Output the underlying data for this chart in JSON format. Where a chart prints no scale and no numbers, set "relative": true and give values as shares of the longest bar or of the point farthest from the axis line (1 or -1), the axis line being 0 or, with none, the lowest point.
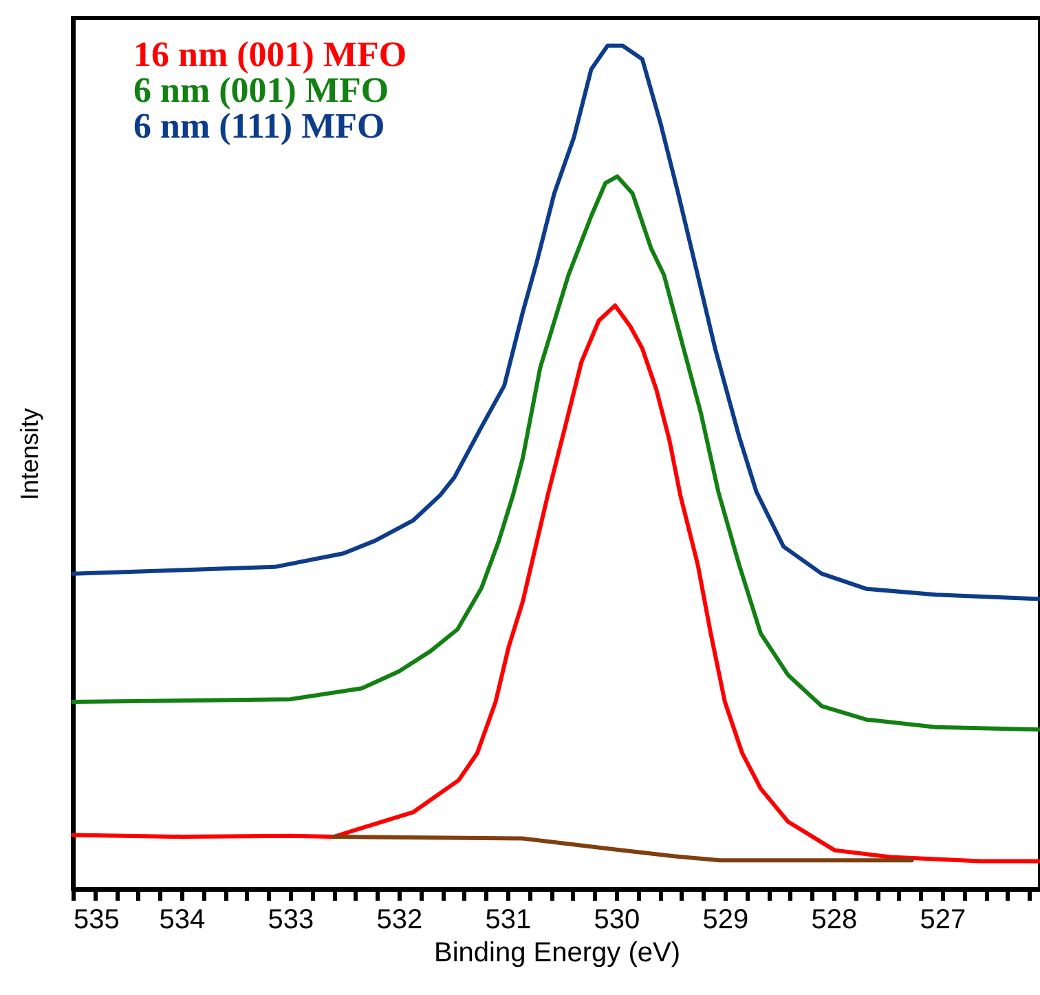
{
  "chart_data": {
    "type": "line",
    "relative": true,
    "xlabel": "Binding Energy (eV)",
    "ylabel": "Intensity",
    "xlim": [
      535,
      526.1
    ],
    "xticks": [
      535,
      {
        "value": 534.8,
        "label": null
      },
      {
        "value": 534.6,
        "label": null
      },
      {
        "value": 534.4,
        "label": null
      },
      {
        "value": 534.2,
        "label": null
      },
      534,
      {
        "value": 533.8,
        "label": null
      },
      {
        "value": 533.6,
        "label": null
      },
      {
        "value": 533.4,
        "label": null
      },
      {
        "value": 533.2,
        "label": null
      },
      533,
      {
        "value": 532.8,
        "label": null
      },
      {
        "value": 532.6,
        "label": null
      },
      {
        "value": 532.4,
        "label": null
      },
      {
        "value": 532.2,
        "label": null
      },
      532,
      {
        "value": 531.8,
        "label": null
      },
      {
        "value": 531.6,
        "label": null
      },
      {
        "value": 531.4,
        "label": null
      },
      {
        "value": 531.2,
        "label": null
      },
      531,
      {
        "value": 530.8,
        "label": null
      },
      {
        "value": 530.6,
        "label": null
      },
      {
        "value": 530.4,
        "label": null
      },
      {
        "value": 530.2,
        "label": null
      },
      530,
      {
        "value": 529.8,
        "label": null
      },
      {
        "value": 529.6,
        "label": null
      },
      {
        "value": 529.4,
        "label": null
      },
      {
        "value": 529.2,
        "label": null
      },
      529,
      {
        "value": 528.8,
        "label": null
      },
      {
        "value": 528.6,
        "label": null
      },
      {
        "value": 528.4,
        "label": null
      },
      {
        "value": 528.2,
        "label": null
      },
      528,
      {
        "value": 527.8,
        "label": null
      },
      {
        "value": 527.6,
        "label": null
      },
      {
        "value": 527.4,
        "label": null
      },
      {
        "value": 527.2,
        "label": null
      },
      527,
      {
        "value": 526.8,
        "label": null
      },
      {
        "value": 526.6,
        "label": null
      },
      {
        "value": 526.4,
        "label": null
      },
      {
        "value": 526.2,
        "label": null
      }
    ],
    "grid": false,
    "legend": "top left",
    "marker": "none",
    "line_style": "solid",
    "series": [
      {
        "name": "16 nm (001) MFO",
        "color": "#ff0000",
        "x": [
          535,
          534,
          533,
          532.6,
          531.87,
          531.45,
          531.28,
          531.11,
          530.99,
          530.86,
          530.63,
          530.48,
          530.32,
          530.16,
          530.01,
          529.87,
          529.76,
          529.63,
          529.51,
          529.41,
          529.25,
          529.13,
          529.0,
          528.84,
          528.67,
          528.42,
          527.99,
          527.48,
          526.65,
          526.1
        ],
        "values": [
          0.064,
          0.062,
          0.063,
          0.062,
          0.091,
          0.129,
          0.161,
          0.222,
          0.287,
          0.341,
          0.467,
          0.543,
          0.625,
          0.674,
          0.692,
          0.667,
          0.641,
          0.592,
          0.532,
          0.467,
          0.385,
          0.303,
          0.222,
          0.161,
          0.119,
          0.08,
          0.046,
          0.038,
          0.033,
          0.033
        ]
      },
      {
        "name": "6 nm (001) MFO",
        "color": "#138013",
        "x": [
          535,
          533,
          532.34,
          532.0,
          531.71,
          531.46,
          531.24,
          531.08,
          530.95,
          530.86,
          530.7,
          530.44,
          530.23,
          530.1,
          529.99,
          529.85,
          529.68,
          529.56,
          529.38,
          529.22,
          529.06,
          528.87,
          528.67,
          528.42,
          528.11,
          527.7,
          527.06,
          526.1
        ],
        "values": [
          0.222,
          0.225,
          0.238,
          0.258,
          0.282,
          0.308,
          0.357,
          0.413,
          0.467,
          0.511,
          0.618,
          0.728,
          0.798,
          0.837,
          0.845,
          0.825,
          0.76,
          0.728,
          0.641,
          0.564,
          0.471,
          0.385,
          0.303,
          0.254,
          0.217,
          0.201,
          0.192,
          0.189
        ]
      },
      {
        "name": "6 nm (111) MFO",
        "color": "#0d3d8a",
        "x": [
          535,
          533.14,
          532.51,
          532.22,
          531.87,
          531.62,
          531.49,
          531.24,
          531.03,
          530.86,
          530.73,
          530.57,
          530.39,
          530.23,
          530.08,
          529.94,
          529.76,
          529.59,
          529.43,
          529.25,
          529.09,
          528.87,
          528.71,
          528.46,
          528.11,
          527.7,
          527.06,
          526.1
        ],
        "values": [
          0.374,
          0.382,
          0.398,
          0.413,
          0.437,
          0.467,
          0.488,
          0.548,
          0.597,
          0.684,
          0.744,
          0.825,
          0.891,
          0.972,
          1.0,
          1.0,
          0.984,
          0.907,
          0.825,
          0.728,
          0.641,
          0.537,
          0.471,
          0.406,
          0.374,
          0.356,
          0.349,
          0.344
        ]
      },
      {
        "color": "#7f3f0f",
        "x": [
          532.6,
          530.86,
          530.01,
          529.47,
          529.05,
          527.28
        ],
        "values": [
          0.062,
          0.06,
          0.047,
          0.039,
          0.034,
          0.034
        ]
      }
    ]
  }
}
